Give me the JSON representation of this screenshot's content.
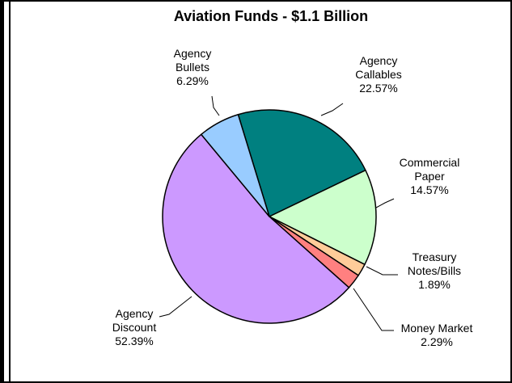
{
  "chart_data": {
    "type": "pie",
    "title": "Aviation Funds - $1.1 Billion",
    "slices": [
      {
        "key": "agency-callables",
        "label_lines": [
          "Agency",
          "Callables"
        ],
        "percent_label": "22.57%",
        "value": 22.57,
        "color": "#008080"
      },
      {
        "key": "commercial-paper",
        "label_lines": [
          "Commercial",
          "Paper"
        ],
        "percent_label": "14.57%",
        "value": 14.57,
        "color": "#CCFFCC"
      },
      {
        "key": "treasury-notes-bills",
        "label_lines": [
          "Treasury",
          "Notes/Bills"
        ],
        "percent_label": "1.89%",
        "value": 1.89,
        "color": "#FFCC99"
      },
      {
        "key": "money-market",
        "label_lines": [
          "Money Market"
        ],
        "percent_label": "2.29%",
        "value": 2.29,
        "color": "#FF8080"
      },
      {
        "key": "agency-discount",
        "label_lines": [
          "Agency",
          "Discount"
        ],
        "percent_label": "52.39%",
        "value": 52.39,
        "color": "#CC99FF"
      },
      {
        "key": "agency-bullets",
        "label_lines": [
          "Agency",
          "Bullets"
        ],
        "percent_label": "6.29%",
        "value": 6.29,
        "color": "#99CCFF"
      }
    ]
  }
}
